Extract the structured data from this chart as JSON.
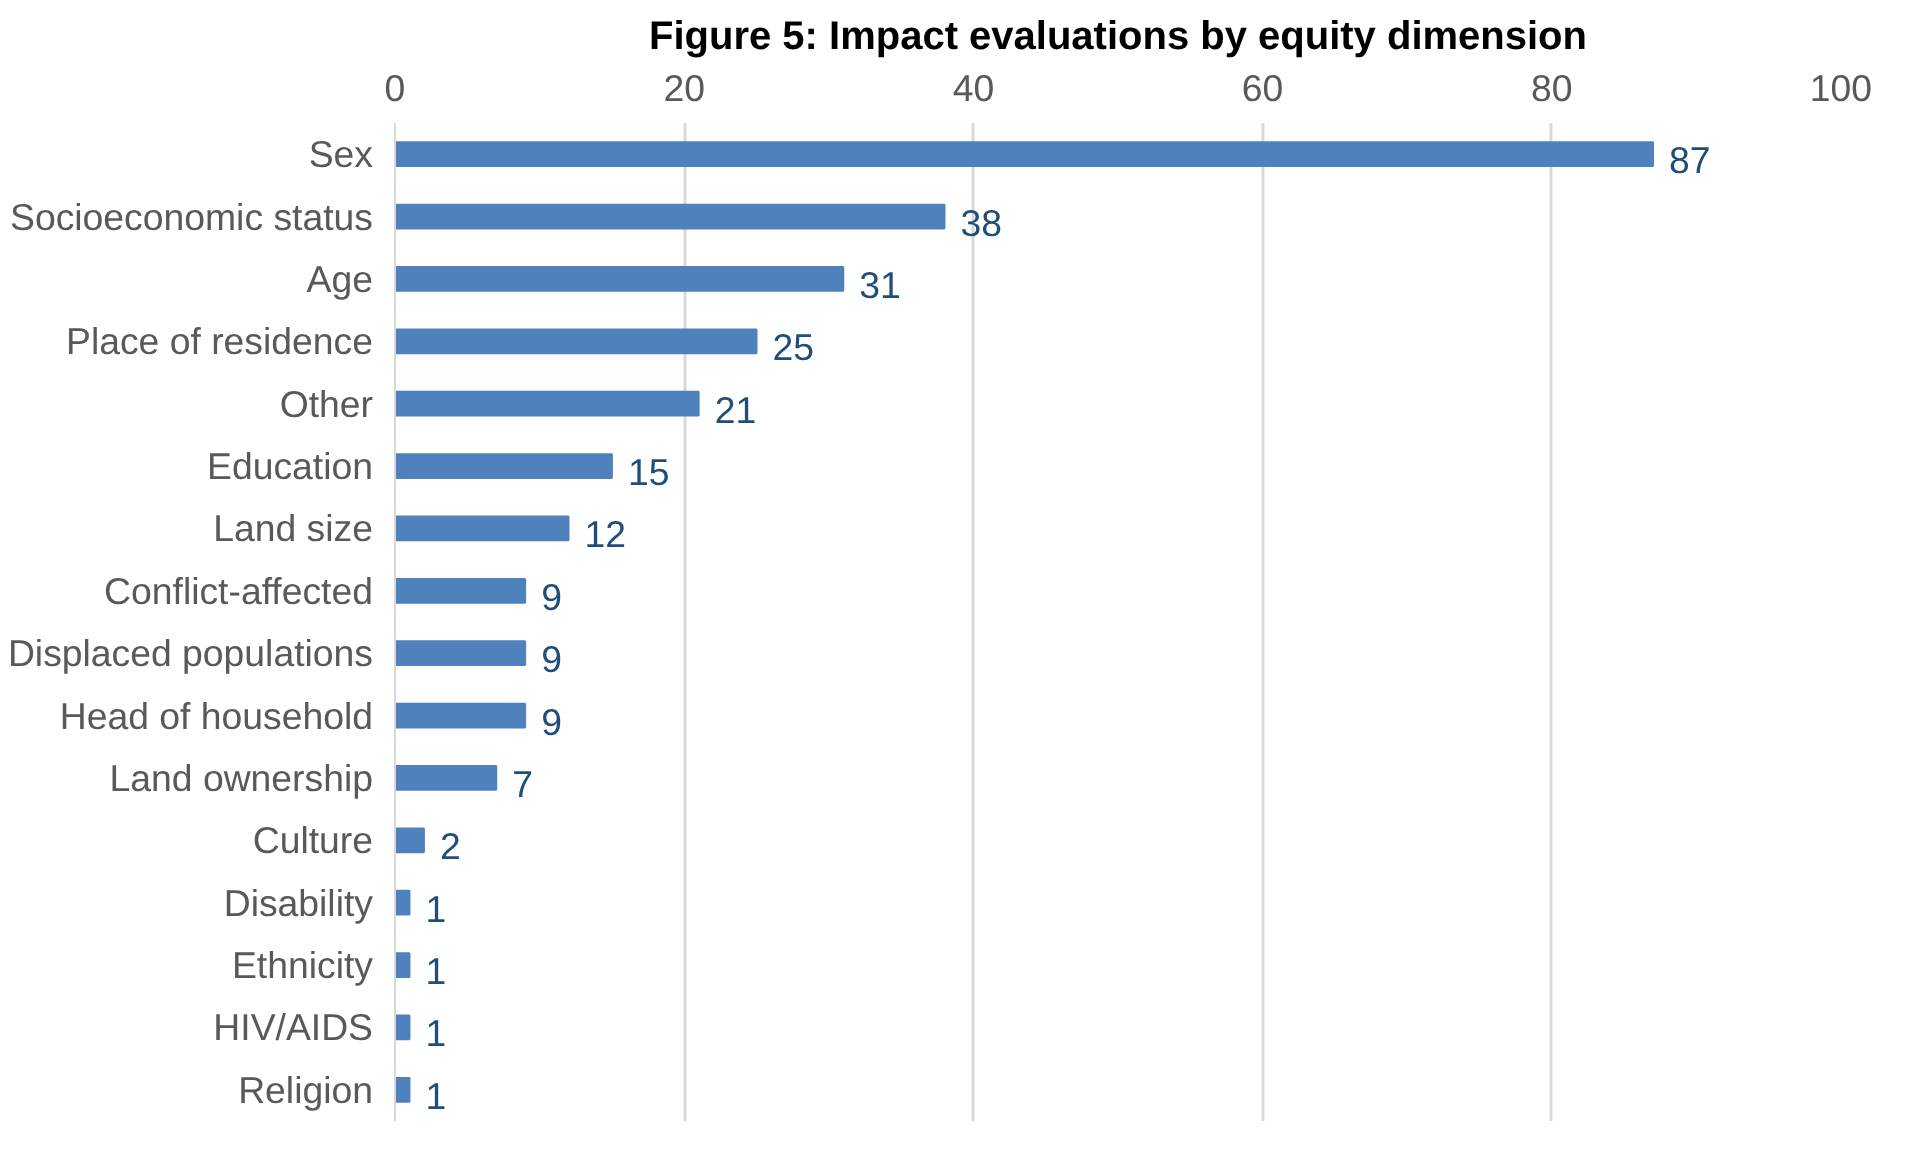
{
  "chart_data": {
    "type": "bar",
    "orientation": "horizontal",
    "title": "Figure 5: Impact evaluations by equity dimension",
    "categories": [
      "Sex",
      "Socioeconomic status",
      "Age",
      "Place of residence",
      "Other",
      "Education",
      "Land size",
      "Conflict-affected",
      "Displaced populations",
      "Head of household",
      "Land ownership",
      "Culture",
      "Disability",
      "Ethnicity",
      "HIV/AIDS",
      "Religion"
    ],
    "values": [
      87,
      38,
      31,
      25,
      21,
      15,
      12,
      9,
      9,
      9,
      7,
      2,
      1,
      1,
      1,
      1
    ],
    "color": "#4f81bd",
    "xlim": [
      0,
      100
    ],
    "xticks": [
      0,
      20,
      40,
      60,
      80,
      100
    ],
    "grid": "x",
    "data_labels": true
  }
}
